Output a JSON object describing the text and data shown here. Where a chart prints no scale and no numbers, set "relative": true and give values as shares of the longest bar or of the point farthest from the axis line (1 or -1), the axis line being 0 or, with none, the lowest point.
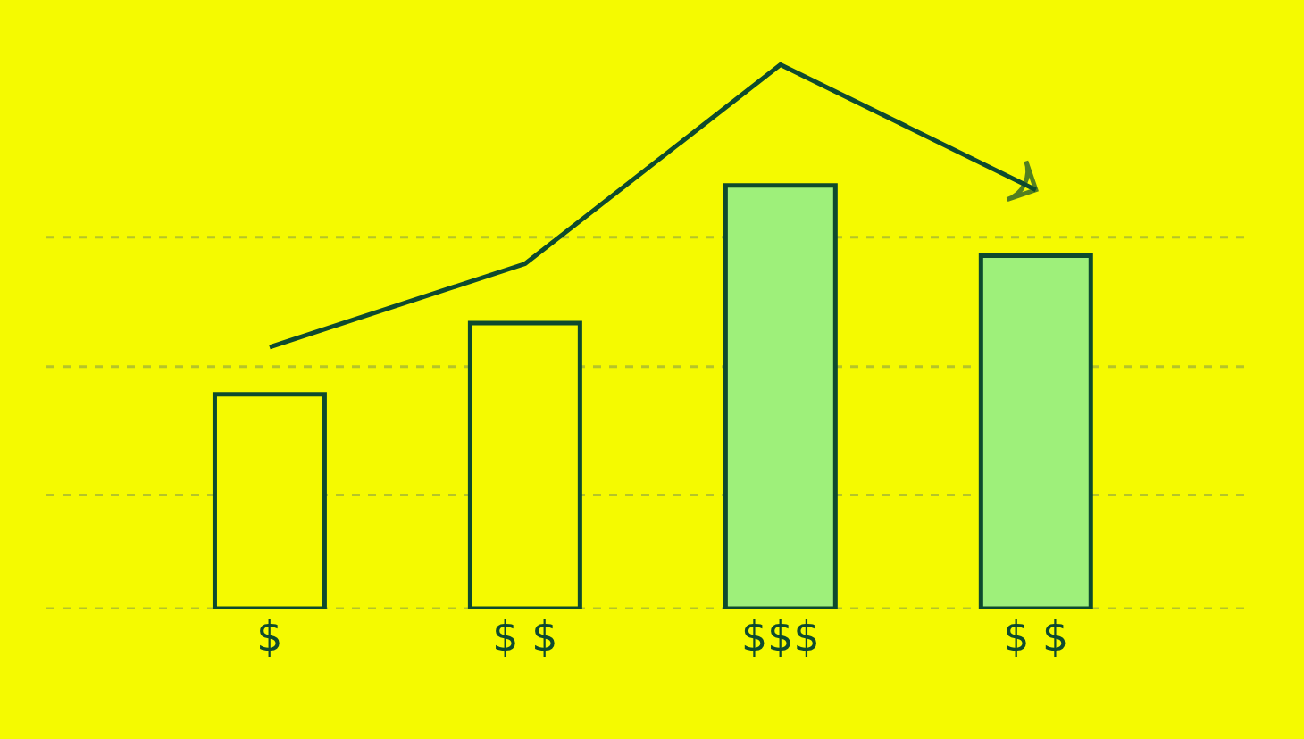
{
  "chart_data": {
    "type": "bar",
    "relative": true,
    "categories": [
      "$",
      "$ $",
      "$$$",
      "$ $"
    ],
    "series": [
      {
        "color": "#0d4a2e",
        "colors": [
          "#f5fa00",
          "#f5fa00",
          "#9ef07a",
          "#9ef07a"
        ],
        "values": [
          0.394,
          0.525,
          0.778,
          0.649
        ]
      },
      {
        "type": "line",
        "color": "#0d4a2e",
        "values": [
          0.481,
          0.634,
          1,
          0.77
        ]
      }
    ],
    "ref_lines": [
      {
        "axis": "y",
        "value": 0,
        "color": "#b5c42a",
        "line_style": "dashed"
      },
      {
        "axis": "y",
        "value": 0.209,
        "color": "#b5c42a",
        "line_style": "dashed"
      },
      {
        "axis": "y",
        "value": 0.445,
        "color": "#b5c42a",
        "line_style": "dashed"
      },
      {
        "axis": "y",
        "value": 0.683,
        "color": "#b5c42a",
        "line_style": "dashed"
      }
    ]
  }
}
